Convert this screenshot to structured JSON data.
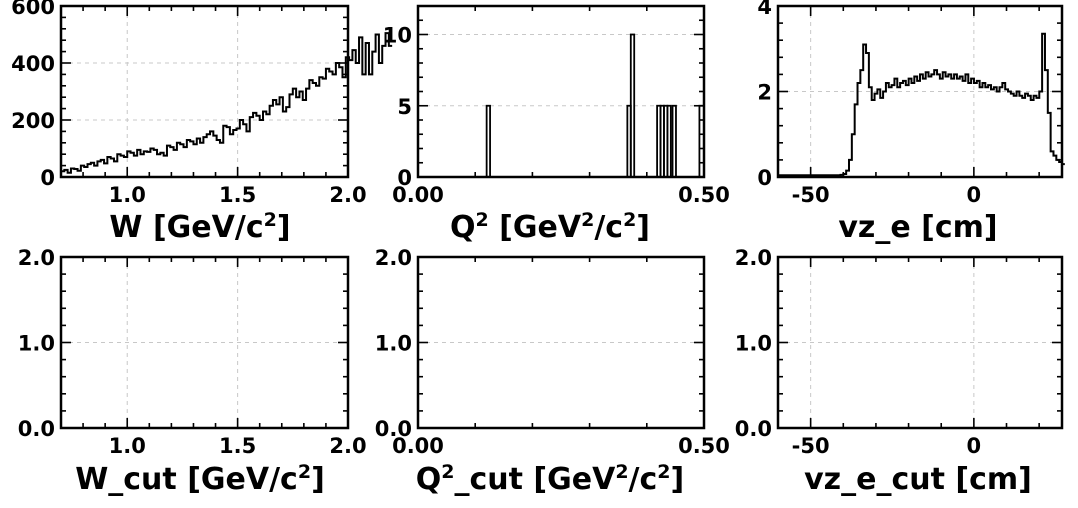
{
  "chart_data": [
    {
      "id": "w",
      "type": "histogram",
      "xlabel": "W [GeV/c^2]",
      "x_range": [
        0.7,
        2.0
      ],
      "ylim": [
        0,
        600
      ],
      "x_ticks": [
        1.0,
        1.5,
        2.0
      ],
      "x_tick_labels": [
        "1.0",
        "1.5",
        "2.0"
      ],
      "y_ticks": [
        0,
        200,
        400,
        600
      ],
      "y_tick_labels": [
        "0",
        "200",
        "400",
        "600"
      ],
      "grid": true,
      "bins": {
        "x_start": 0.7,
        "bin_width": 0.015,
        "counts": [
          20,
          25,
          15,
          30,
          28,
          22,
          40,
          35,
          45,
          50,
          40,
          55,
          60,
          48,
          70,
          65,
          55,
          80,
          75,
          70,
          90,
          85,
          75,
          95,
          80,
          90,
          88,
          100,
          95,
          80,
          85,
          75,
          110,
          105,
          95,
          120,
          115,
          105,
          130,
          125,
          115,
          135,
          120,
          140,
          150,
          160,
          145,
          130,
          120,
          180,
          175,
          150,
          165,
          170,
          200,
          185,
          160,
          210,
          225,
          215,
          200,
          230,
          220,
          250,
          270,
          255,
          280,
          230,
          245,
          290,
          310,
          280,
          300,
          270,
          310,
          340,
          330,
          320,
          350,
          345,
          380,
          370,
          360,
          400,
          385,
          350,
          420,
          410,
          445,
          400,
          490,
          360,
          470,
          360,
          440,
          500,
          400,
          460,
          505,
          460
        ]
      }
    },
    {
      "id": "q2",
      "type": "histogram",
      "xlabel": "Q^2 [GeV^2/c^2]",
      "x_range": [
        0.0,
        0.5
      ],
      "ylim": [
        0,
        12
      ],
      "x_ticks": [
        0.0,
        0.5
      ],
      "x_tick_labels": [
        "0.00",
        "0.50"
      ],
      "y_ticks": [
        0,
        5,
        10
      ],
      "y_tick_labels": [
        "0",
        "5",
        "10"
      ],
      "grid": true,
      "bars": [
        {
          "x0": 0.12,
          "x1": 0.126,
          "value": 5
        },
        {
          "x0": 0.366,
          "x1": 0.372,
          "value": 5
        },
        {
          "x0": 0.372,
          "x1": 0.378,
          "value": 10
        },
        {
          "x0": 0.418,
          "x1": 0.424,
          "value": 5
        },
        {
          "x0": 0.424,
          "x1": 0.43,
          "value": 5
        },
        {
          "x0": 0.43,
          "x1": 0.436,
          "value": 5
        },
        {
          "x0": 0.436,
          "x1": 0.442,
          "value": 5
        },
        {
          "x0": 0.445,
          "x1": 0.451,
          "value": 5
        },
        {
          "x0": 0.492,
          "x1": 0.5,
          "value": 5
        }
      ]
    },
    {
      "id": "vz",
      "type": "histogram",
      "xlabel": "vz_e [cm]",
      "x_range": [
        -60,
        27
      ],
      "ylim": [
        0,
        4
      ],
      "x_ticks": [
        -50,
        0
      ],
      "x_tick_labels": [
        "-50",
        "0"
      ],
      "y_ticks": [
        0,
        2,
        4
      ],
      "y_tick_labels": [
        "0",
        "2",
        "4"
      ],
      "grid": true,
      "bins": {
        "x_start": -60,
        "bin_width": 0.87,
        "counts": [
          0.04,
          0.04,
          0.04,
          0.04,
          0.04,
          0.04,
          0.04,
          0.04,
          0.04,
          0.04,
          0.04,
          0.04,
          0.04,
          0.04,
          0.04,
          0.04,
          0.04,
          0.04,
          0.04,
          0.04,
          0.04,
          0.04,
          0.05,
          0.07,
          0.15,
          0.4,
          1.0,
          1.7,
          2.2,
          2.5,
          3.1,
          2.9,
          2.1,
          1.8,
          1.95,
          2.05,
          1.85,
          2.0,
          2.2,
          2.1,
          2.15,
          2.3,
          2.1,
          2.2,
          2.25,
          2.15,
          2.3,
          2.2,
          2.35,
          2.25,
          2.4,
          2.3,
          2.45,
          2.35,
          2.4,
          2.5,
          2.4,
          2.3,
          2.45,
          2.35,
          2.4,
          2.3,
          2.4,
          2.3,
          2.35,
          2.25,
          2.4,
          2.2,
          2.3,
          2.2,
          2.25,
          2.1,
          2.2,
          2.1,
          2.15,
          2.05,
          2.1,
          2.0,
          2.1,
          2.2,
          2.05,
          2.0,
          1.95,
          1.9,
          2.0,
          1.9,
          1.85,
          1.95,
          1.9,
          1.8,
          1.9,
          1.85,
          2.0,
          3.35,
          2.5,
          1.5,
          0.6,
          0.5,
          0.4,
          0.35,
          0.3
        ]
      }
    },
    {
      "id": "w_cut",
      "type": "histogram",
      "xlabel": "W_cut [GeV/c^2]",
      "x_range": [
        0.7,
        2.0
      ],
      "ylim": [
        0,
        2.0
      ],
      "x_ticks": [
        1.0,
        1.5,
        2.0
      ],
      "x_tick_labels": [
        "1.0",
        "1.5",
        "2.0"
      ],
      "y_ticks": [
        0,
        1.0,
        2.0
      ],
      "y_tick_labels": [
        "0.0",
        "1.0",
        "2.0"
      ],
      "grid": true
    },
    {
      "id": "q2_cut",
      "type": "histogram",
      "xlabel": "Q^2_cut [GeV^2/c^2]",
      "x_range": [
        0.0,
        0.5
      ],
      "ylim": [
        0,
        2.0
      ],
      "x_ticks": [
        0.0,
        0.5
      ],
      "x_tick_labels": [
        "0.00",
        "0.50"
      ],
      "y_ticks": [
        0,
        1.0,
        2.0
      ],
      "y_tick_labels": [
        "0.0",
        "1.0",
        "2.0"
      ],
      "grid": true
    },
    {
      "id": "vz_cut",
      "type": "histogram",
      "xlabel": "vz_e_cut [cm]",
      "x_range": [
        -60,
        27
      ],
      "ylim": [
        0,
        2.0
      ],
      "x_ticks": [
        -50,
        0
      ],
      "x_tick_labels": [
        "-50",
        "0"
      ],
      "y_ticks": [
        0,
        1.0,
        2.0
      ],
      "y_tick_labels": [
        "0.0",
        "1.0",
        "2.0"
      ],
      "grid": true
    }
  ],
  "axis_titles": {
    "w": {
      "parts": [
        {
          "t": "W [GeV/c"
        },
        {
          "t": "2",
          "sup": true
        },
        {
          "t": "]"
        }
      ]
    },
    "q2": {
      "parts": [
        {
          "t": "Q"
        },
        {
          "t": "2",
          "sup": true
        },
        {
          "t": " [GeV"
        },
        {
          "t": "2",
          "sup": true
        },
        {
          "t": "/c"
        },
        {
          "t": "2",
          "sup": true
        },
        {
          "t": "]"
        }
      ]
    },
    "vz": {
      "parts": [
        {
          "t": "vz_e [cm]"
        }
      ]
    },
    "w_cut": {
      "parts": [
        {
          "t": "W_cut [GeV/c"
        },
        {
          "t": "2",
          "sup": true
        },
        {
          "t": "]"
        }
      ]
    },
    "q2_cut": {
      "parts": [
        {
          "t": "Q"
        },
        {
          "t": "2",
          "sup": true
        },
        {
          "t": "_cut [GeV"
        },
        {
          "t": "2",
          "sup": true
        },
        {
          "t": "/c"
        },
        {
          "t": "2",
          "sup": true
        },
        {
          "t": "]"
        }
      ]
    },
    "vz_cut": {
      "parts": [
        {
          "t": "vz_e_cut [cm]"
        }
      ]
    }
  }
}
